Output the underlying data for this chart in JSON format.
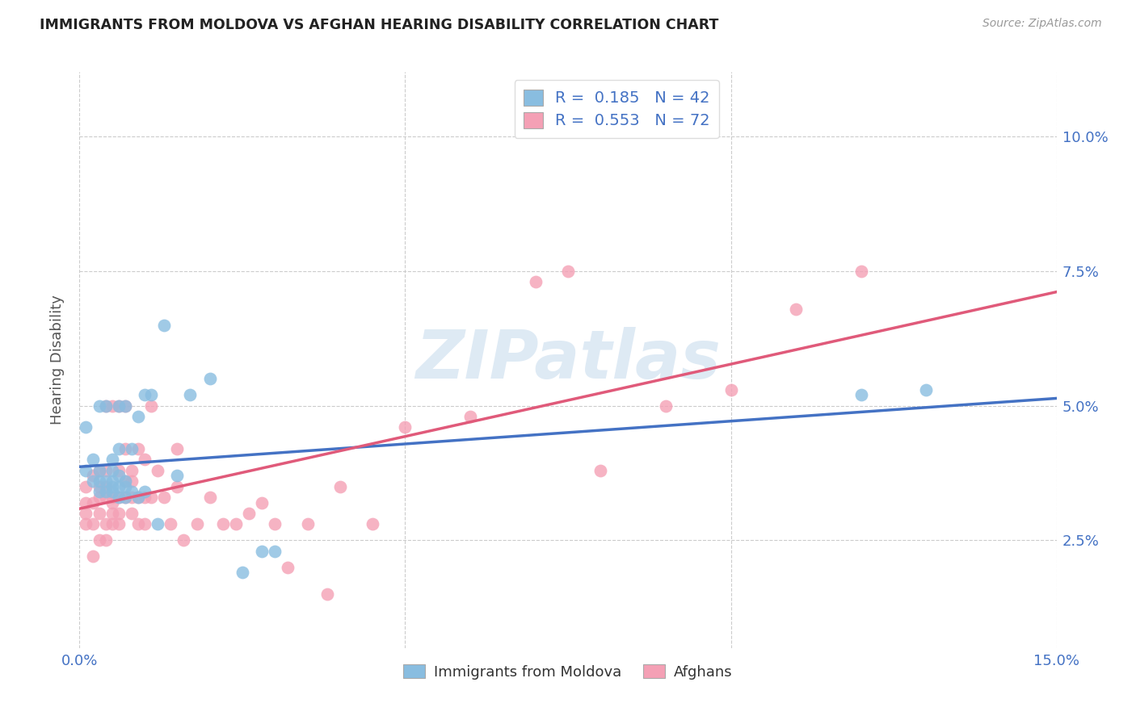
{
  "title": "IMMIGRANTS FROM MOLDOVA VS AFGHAN HEARING DISABILITY CORRELATION CHART",
  "source": "Source: ZipAtlas.com",
  "ylabel": "Hearing Disability",
  "y_ticks": [
    0.025,
    0.05,
    0.075,
    0.1
  ],
  "y_tick_labels": [
    "2.5%",
    "5.0%",
    "7.5%",
    "10.0%"
  ],
  "x_range": [
    0.0,
    0.15
  ],
  "y_range": [
    0.005,
    0.112
  ],
  "watermark": "ZIPatlas",
  "legend_r1_val": "0.185",
  "legend_n1_val": "42",
  "legend_r2_val": "0.553",
  "legend_n2_val": "72",
  "legend_label1": "Immigrants from Moldova",
  "legend_label2": "Afghans",
  "color_blue": "#89bde0",
  "color_pink": "#f4a0b5",
  "line_color_blue": "#4472c4",
  "line_color_pink": "#e05a7a",
  "moldova_x": [
    0.001,
    0.001,
    0.002,
    0.002,
    0.003,
    0.003,
    0.003,
    0.003,
    0.004,
    0.004,
    0.004,
    0.005,
    0.005,
    0.005,
    0.005,
    0.005,
    0.006,
    0.006,
    0.006,
    0.006,
    0.006,
    0.007,
    0.007,
    0.007,
    0.007,
    0.008,
    0.008,
    0.009,
    0.009,
    0.01,
    0.01,
    0.011,
    0.012,
    0.013,
    0.015,
    0.017,
    0.02,
    0.025,
    0.028,
    0.03,
    0.12,
    0.13
  ],
  "moldova_y": [
    0.038,
    0.046,
    0.036,
    0.04,
    0.034,
    0.036,
    0.038,
    0.05,
    0.034,
    0.036,
    0.05,
    0.034,
    0.035,
    0.036,
    0.038,
    0.04,
    0.033,
    0.035,
    0.037,
    0.042,
    0.05,
    0.033,
    0.035,
    0.036,
    0.05,
    0.034,
    0.042,
    0.033,
    0.048,
    0.034,
    0.052,
    0.052,
    0.028,
    0.065,
    0.037,
    0.052,
    0.055,
    0.019,
    0.023,
    0.023,
    0.052,
    0.053
  ],
  "afghan_x": [
    0.001,
    0.001,
    0.001,
    0.001,
    0.002,
    0.002,
    0.002,
    0.002,
    0.003,
    0.003,
    0.003,
    0.003,
    0.003,
    0.004,
    0.004,
    0.004,
    0.004,
    0.004,
    0.004,
    0.005,
    0.005,
    0.005,
    0.005,
    0.005,
    0.006,
    0.006,
    0.006,
    0.006,
    0.006,
    0.007,
    0.007,
    0.007,
    0.007,
    0.008,
    0.008,
    0.008,
    0.008,
    0.009,
    0.009,
    0.009,
    0.01,
    0.01,
    0.01,
    0.011,
    0.011,
    0.012,
    0.013,
    0.014,
    0.015,
    0.015,
    0.016,
    0.018,
    0.02,
    0.022,
    0.024,
    0.026,
    0.028,
    0.03,
    0.032,
    0.035,
    0.038,
    0.04,
    0.045,
    0.05,
    0.06,
    0.07,
    0.075,
    0.08,
    0.09,
    0.1,
    0.11,
    0.12
  ],
  "afghan_y": [
    0.028,
    0.03,
    0.032,
    0.035,
    0.022,
    0.028,
    0.032,
    0.037,
    0.025,
    0.03,
    0.033,
    0.035,
    0.038,
    0.025,
    0.028,
    0.033,
    0.035,
    0.038,
    0.05,
    0.028,
    0.03,
    0.032,
    0.033,
    0.05,
    0.028,
    0.03,
    0.033,
    0.038,
    0.05,
    0.033,
    0.036,
    0.042,
    0.05,
    0.03,
    0.033,
    0.036,
    0.038,
    0.028,
    0.033,
    0.042,
    0.028,
    0.033,
    0.04,
    0.033,
    0.05,
    0.038,
    0.033,
    0.028,
    0.035,
    0.042,
    0.025,
    0.028,
    0.033,
    0.028,
    0.028,
    0.03,
    0.032,
    0.028,
    0.02,
    0.028,
    0.015,
    0.035,
    0.028,
    0.046,
    0.048,
    0.073,
    0.075,
    0.038,
    0.05,
    0.053,
    0.068,
    0.075
  ]
}
